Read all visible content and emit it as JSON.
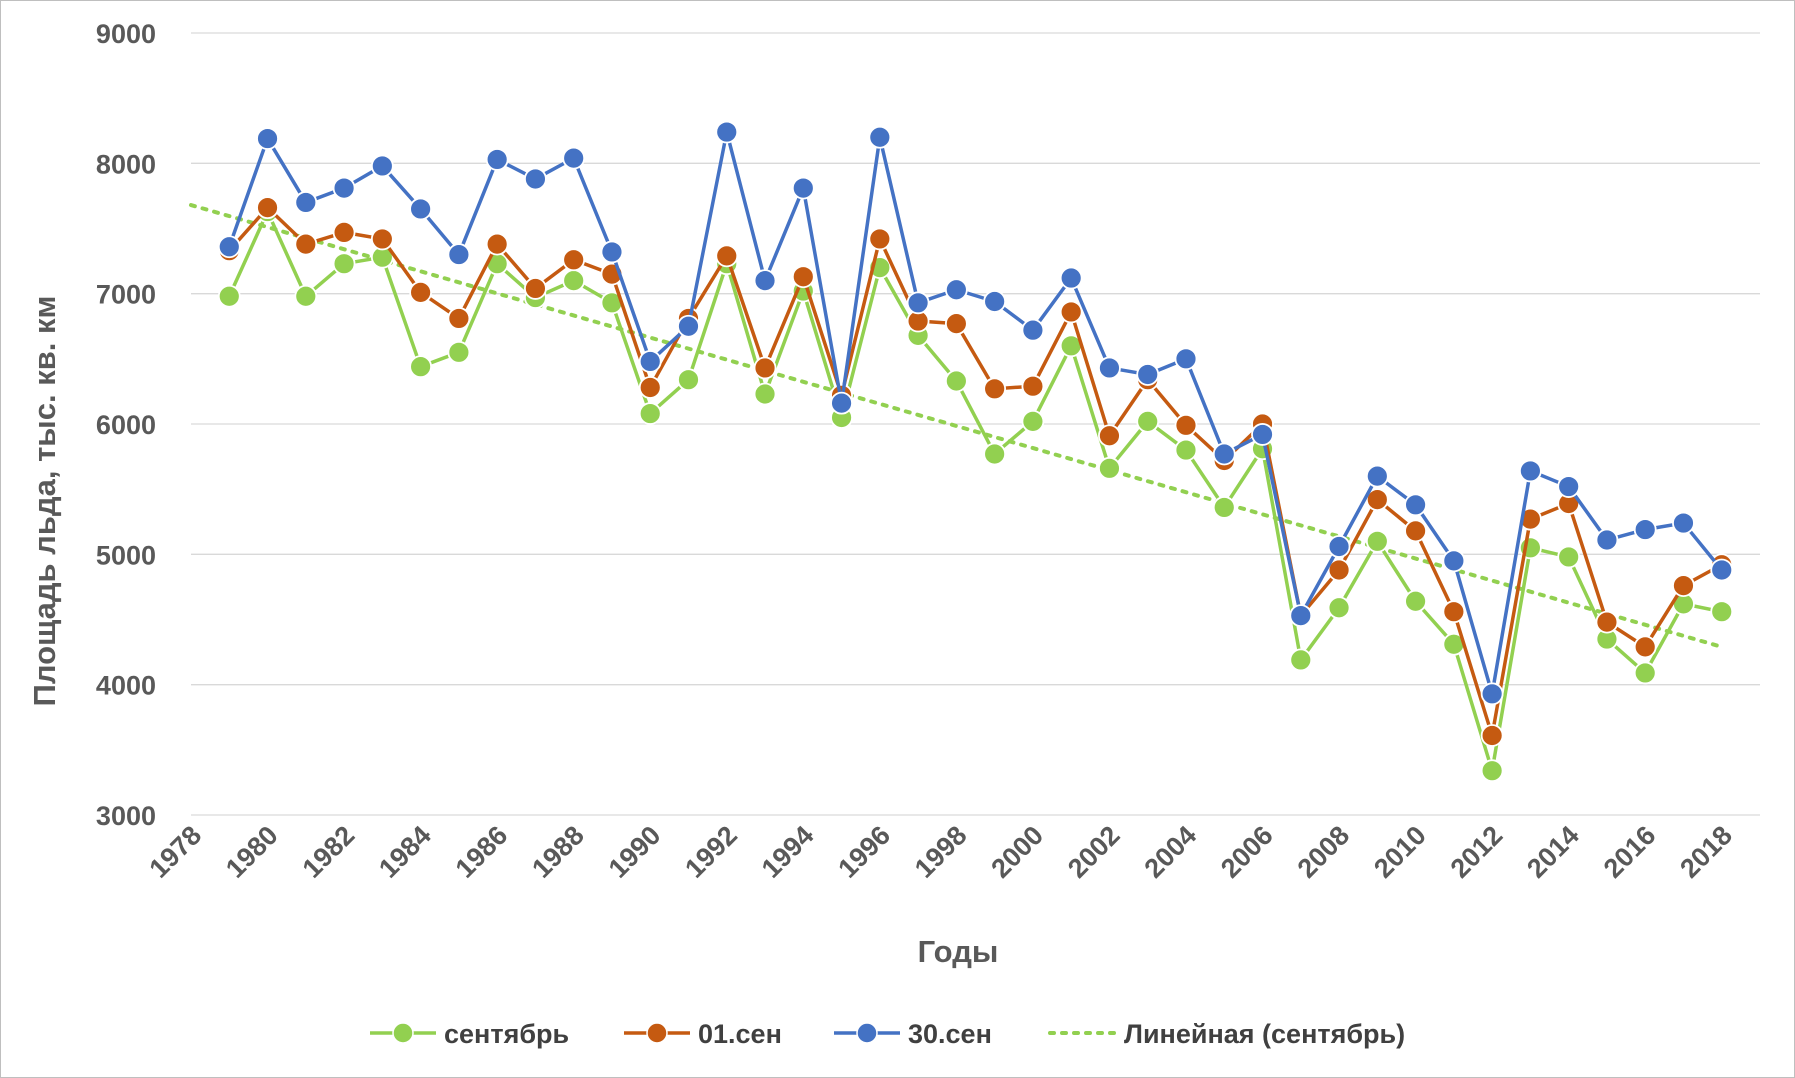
{
  "chart_data": {
    "type": "line",
    "title": "",
    "xlabel": "Годы",
    "ylabel": "Площадь льда, тыс. кв. км",
    "xlim": [
      1978,
      2019
    ],
    "ylim": [
      3000,
      9000
    ],
    "x_ticks": [
      "1978",
      "1980",
      "1982",
      "1984",
      "1986",
      "1988",
      "1990",
      "1992",
      "1994",
      "1996",
      "1998",
      "2000",
      "2002",
      "2004",
      "2006",
      "2008",
      "2010",
      "2012",
      "2014",
      "2016",
      "2018"
    ],
    "y_ticks": [
      "3000",
      "4000",
      "5000",
      "6000",
      "7000",
      "8000",
      "9000"
    ],
    "grid": "horizontal",
    "legend_position": "bottom",
    "x": [
      1979,
      1980,
      1981,
      1982,
      1983,
      1984,
      1985,
      1986,
      1987,
      1988,
      1989,
      1990,
      1991,
      1992,
      1993,
      1994,
      1995,
      1996,
      1997,
      1998,
      1999,
      2000,
      2001,
      2002,
      2003,
      2004,
      2005,
      2006,
      2007,
      2008,
      2009,
      2010,
      2011,
      2012,
      2013,
      2014,
      2015,
      2016,
      2017,
      2018
    ],
    "series": [
      {
        "name": "сентябрь",
        "color": "#92d050",
        "marker": "circle",
        "values": [
          6980,
          7630,
          6980,
          7230,
          7280,
          6440,
          6550,
          7230,
          6970,
          7100,
          6930,
          6080,
          6340,
          7230,
          6230,
          7020,
          6050,
          7200,
          6680,
          6330,
          5770,
          6020,
          6600,
          5660,
          6020,
          5800,
          5360,
          5810,
          4190,
          4590,
          5100,
          4640,
          4310,
          3340,
          5050,
          4980,
          4350,
          4090,
          4620,
          4560
        ]
      },
      {
        "name": "01.сен",
        "color": "#c55a11",
        "marker": "circle",
        "values": [
          7330,
          7660,
          7380,
          7470,
          7420,
          7010,
          6810,
          7380,
          7040,
          7260,
          7150,
          6280,
          6810,
          7290,
          6430,
          7130,
          6220,
          7420,
          6790,
          6770,
          6270,
          6290,
          6860,
          5910,
          6340,
          5990,
          5720,
          6000,
          4530,
          4880,
          5420,
          5180,
          4560,
          3610,
          5270,
          5390,
          4480,
          4290,
          4760,
          4920
        ]
      },
      {
        "name": "30.сен",
        "color": "#4472c4",
        "marker": "circle",
        "values": [
          7360,
          8190,
          7700,
          7810,
          7980,
          7650,
          7300,
          8030,
          7880,
          8040,
          7320,
          6480,
          6750,
          8240,
          7100,
          7810,
          6160,
          8200,
          6930,
          7030,
          6940,
          6720,
          7120,
          6430,
          6380,
          6500,
          5770,
          5920,
          4530,
          5060,
          5600,
          5380,
          4950,
          3930,
          5640,
          5520,
          5110,
          5190,
          5240,
          4880
        ]
      }
    ],
    "trendline": {
      "name": "Линейная (сентябрь)",
      "color": "#92d050",
      "style": "dotted",
      "x": [
        1978,
        2018
      ],
      "values": [
        7680,
        4290
      ]
    }
  }
}
